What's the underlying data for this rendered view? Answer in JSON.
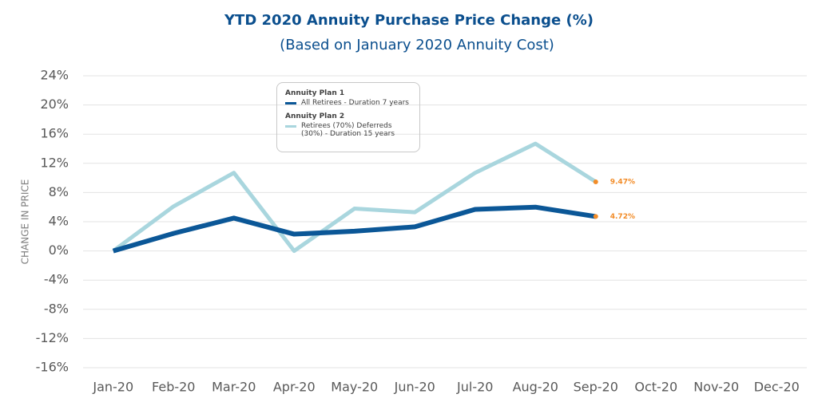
{
  "chart_data": {
    "type": "line",
    "title": "YTD 2020 Annuity Purchase Price Change (%)",
    "subtitle": "(Based on January 2020 Annuity Cost)",
    "y_label": "CHANGE IN PRICE",
    "categories": [
      "Jan-20",
      "Feb-20",
      "Mar-20",
      "Apr-20",
      "May-20",
      "Jun-20",
      "Jul-20",
      "Aug-20",
      "Sep-20",
      "Oct-20",
      "Nov-20",
      "Dec-20"
    ],
    "series": [
      {
        "legend_group": "Annuity Plan 1",
        "name": "All Retirees - Duration 7 years",
        "color": "#0b5797",
        "values": [
          0,
          2.4,
          4.5,
          2.3,
          2.7,
          3.3,
          5.7,
          6.0,
          4.72,
          null,
          null,
          null
        ],
        "value_labels": [
          null,
          null,
          null,
          null,
          null,
          null,
          null,
          null,
          "4.72%",
          null,
          null,
          null
        ]
      },
      {
        "legend_group": "Annuity Plan 2",
        "name": "Retirees (70%) Deferreds (30%) - Duration 15 years",
        "color": "#a9d6de",
        "values": [
          0,
          6.1,
          10.7,
          0,
          5.8,
          5.3,
          10.7,
          14.7,
          9.47,
          null,
          null,
          null
        ],
        "value_labels": [
          null,
          null,
          null,
          null,
          null,
          null,
          null,
          null,
          "9.47%",
          null,
          null,
          null
        ]
      }
    ],
    "label_color": "#f28c28",
    "ylim": [
      -16,
      24
    ],
    "yticks": [
      {
        "value": -16,
        "label": "-16%"
      },
      {
        "value": -12,
        "label": "-12%"
      },
      {
        "value": -8,
        "label": "-8%"
      },
      {
        "value": -4,
        "label": "-4%"
      },
      {
        "value": 0,
        "label": "0%"
      },
      {
        "value": 4,
        "label": "4%"
      },
      {
        "value": 8,
        "label": "8%"
      },
      {
        "value": 12,
        "label": "12%"
      },
      {
        "value": 16,
        "label": "16%"
      },
      {
        "value": 20,
        "label": "20%"
      },
      {
        "value": 24,
        "label": "24%"
      }
    ],
    "grid": true
  }
}
